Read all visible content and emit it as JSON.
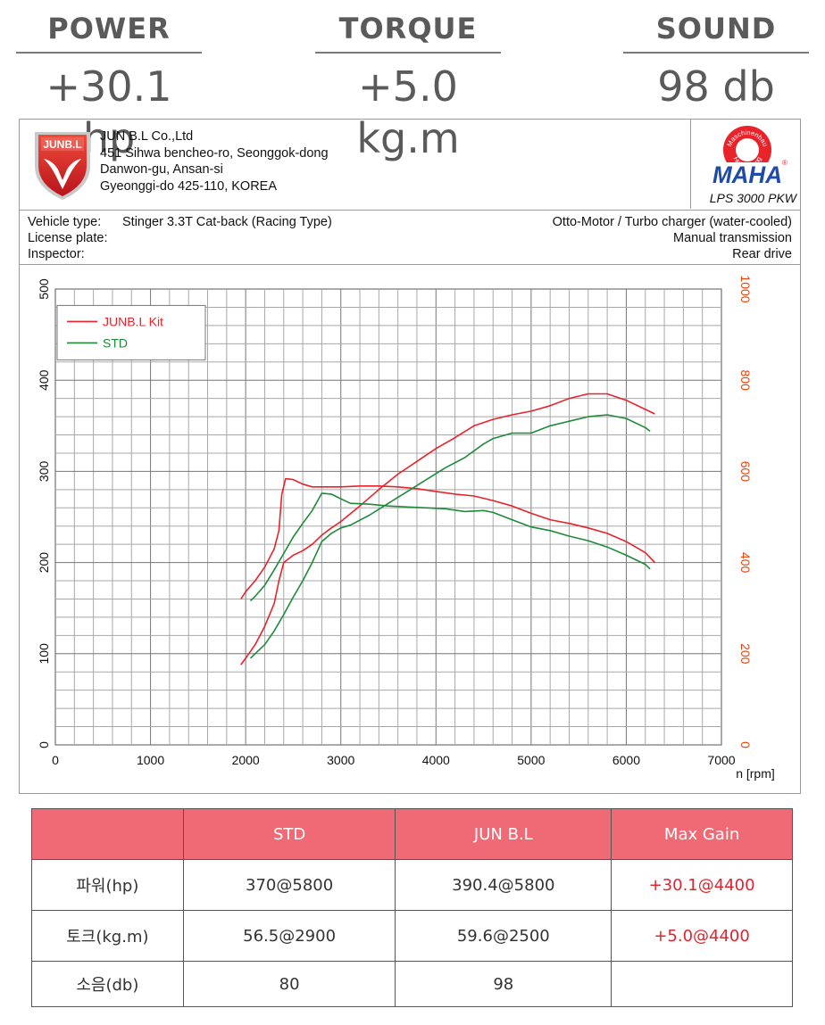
{
  "stats": [
    {
      "label": "POWER",
      "value": "+30.1 hp"
    },
    {
      "label": "TORQUE",
      "value": "+5.0 kg.m"
    },
    {
      "label": "SOUND",
      "value": "98 db"
    }
  ],
  "company": {
    "logo_text": "JUNB.L",
    "name": "JUN B.L Co.,Ltd",
    "address_lines": [
      "451 Sihwa bencheo-ro, Seonggok-dong",
      "Danwon-gu, Ansan-si",
      "Gyeonggi-do 425-110, KOREA"
    ],
    "maha_logo": {
      "ring_top": "Maschinenbau",
      "ring_bottom": "Haldenwang",
      "mark": "MAHA",
      "registered": "®"
    },
    "dyno_model": "LPS 3000 PKW"
  },
  "vehicle": {
    "type_label": "Vehicle type:",
    "type_value": "Stinger 3.3T Cat-back (Racing Type)",
    "plate_label": "License plate:",
    "inspector_label": "Inspector:",
    "engine": "Otto-Motor / Turbo charger (water-cooled)",
    "transmission": "Manual transmission",
    "drive": "Rear drive"
  },
  "colors": {
    "kit": "#e8232a",
    "std": "#1e8a3a",
    "header_red": "#ef6a75",
    "gain": "#e0242e",
    "right_axis": "#e8440c"
  },
  "chart_data": {
    "type": "line",
    "xlabel": "n [rpm]",
    "xlim": [
      0,
      7000
    ],
    "x_ticks": [
      0,
      1000,
      2000,
      3000,
      4000,
      5000,
      6000,
      7000
    ],
    "ylim_left": [
      0,
      500
    ],
    "y_ticks_left": [
      0,
      100,
      200,
      300,
      400,
      500
    ],
    "ylim_right": [
      0,
      1000
    ],
    "y_ticks_right": [
      0,
      200,
      400,
      600,
      800,
      1000
    ],
    "grid": true,
    "legend_position": "top-left",
    "legend": [
      "JUNB.L Kit",
      "STD"
    ],
    "series": [
      {
        "name": "JUNB.L Kit",
        "curve": "upper",
        "color_key": "kit",
        "x": [
          1950,
          2000,
          2100,
          2200,
          2300,
          2350,
          2380,
          2420,
          2500,
          2600,
          2700,
          2800,
          3000,
          3200,
          3400,
          3600,
          3800,
          4000,
          4200,
          4400,
          4600,
          4800,
          5000,
          5200,
          5400,
          5600,
          5800,
          6000,
          6200,
          6300
        ],
        "y": [
          160,
          168,
          180,
          195,
          215,
          235,
          275,
          292,
          291,
          286,
          283,
          283,
          283,
          284,
          284,
          283,
          281,
          278,
          275,
          273,
          268,
          262,
          254,
          247,
          243,
          238,
          232,
          223,
          211,
          200
        ]
      },
      {
        "name": "JUNB.L Kit",
        "curve": "lower",
        "color_key": "kit",
        "x": [
          1950,
          2000,
          2100,
          2200,
          2300,
          2350,
          2400,
          2500,
          2600,
          2700,
          2800,
          2900,
          3000,
          3200,
          3400,
          3600,
          3800,
          4000,
          4200,
          4400,
          4600,
          4800,
          5000,
          5200,
          5400,
          5600,
          5800,
          6000,
          6200,
          6300
        ],
        "y": [
          88,
          95,
          110,
          130,
          155,
          180,
          200,
          208,
          213,
          220,
          230,
          238,
          245,
          262,
          280,
          297,
          311,
          325,
          337,
          350,
          357,
          362,
          366,
          372,
          380,
          385,
          385,
          378,
          368,
          363
        ]
      },
      {
        "name": "STD",
        "curve": "upper",
        "color_key": "std",
        "x": [
          2050,
          2100,
          2200,
          2300,
          2400,
          2500,
          2600,
          2700,
          2800,
          2900,
          3000,
          3100,
          3300,
          3500,
          3700,
          3900,
          4100,
          4300,
          4500,
          4600,
          4800,
          5000,
          5200,
          5400,
          5600,
          5800,
          6000,
          6200,
          6250
        ],
        "y": [
          158,
          163,
          175,
          192,
          210,
          228,
          243,
          257,
          276,
          275,
          270,
          265,
          264,
          262,
          261,
          260,
          259,
          256,
          257,
          255,
          247,
          239,
          235,
          229,
          224,
          217,
          208,
          198,
          193
        ]
      },
      {
        "name": "STD",
        "curve": "lower",
        "color_key": "std",
        "x": [
          2050,
          2100,
          2200,
          2300,
          2400,
          2500,
          2600,
          2700,
          2800,
          2900,
          3000,
          3100,
          3300,
          3500,
          3700,
          3900,
          4100,
          4300,
          4500,
          4600,
          4800,
          5000,
          5200,
          5400,
          5600,
          5800,
          6000,
          6200,
          6250
        ],
        "y": [
          95,
          100,
          110,
          125,
          143,
          162,
          180,
          200,
          223,
          232,
          238,
          241,
          252,
          265,
          278,
          291,
          304,
          315,
          330,
          336,
          342,
          342,
          350,
          355,
          360,
          362,
          358,
          348,
          344
        ]
      }
    ]
  },
  "summary_table": {
    "headers": [
      "",
      "STD",
      "JUN B.L",
      "Max Gain"
    ],
    "rows": [
      {
        "label": "파워(hp)",
        "std": "370@5800",
        "junbl": "390.4@5800",
        "gain": "+30.1@4400"
      },
      {
        "label": "토크(kg.m)",
        "std": "56.5@2900",
        "junbl": "59.6@2500",
        "gain": "+5.0@4400"
      },
      {
        "label": "소음(db)",
        "std": "80",
        "junbl": "98",
        "gain": ""
      }
    ]
  }
}
